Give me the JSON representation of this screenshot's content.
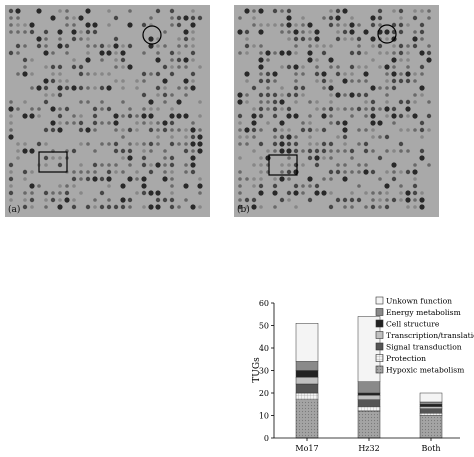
{
  "panels": {
    "a_label": "(a)",
    "b_label": "(b)"
  },
  "chart_data": {
    "type": "bar",
    "stacked": true,
    "categories": [
      "Mo17",
      "Hz32",
      "Both"
    ],
    "ylabel": "TUGs",
    "ylim": [
      0,
      60
    ],
    "yticks": [
      0,
      10,
      20,
      30,
      40,
      50,
      60
    ],
    "legend_placement": "right",
    "series": [
      {
        "name": "Hypoxic metabolism",
        "values": [
          17,
          12,
          10
        ],
        "color": "#a0a0a0",
        "pattern": "dots"
      },
      {
        "name": "Protection",
        "values": [
          3,
          2,
          1
        ],
        "color": "#f0f0f0",
        "pattern": "grid"
      },
      {
        "name": "Signal transduction",
        "values": [
          4,
          3,
          2
        ],
        "color": "#555555",
        "pattern": "solid"
      },
      {
        "name": "Transcription/translation",
        "values": [
          3,
          2,
          1
        ],
        "color": "#c0c0c0",
        "pattern": "solid"
      },
      {
        "name": "Cell structure",
        "values": [
          3,
          1,
          1
        ],
        "color": "#222222",
        "pattern": "solid"
      },
      {
        "name": "Energy metabolism",
        "values": [
          4,
          5,
          1
        ],
        "color": "#8a8a8a",
        "pattern": "solid"
      },
      {
        "name": "Unkown function",
        "values": [
          17,
          29,
          4
        ],
        "color": "#f4f4f4",
        "pattern": "solid"
      }
    ]
  }
}
